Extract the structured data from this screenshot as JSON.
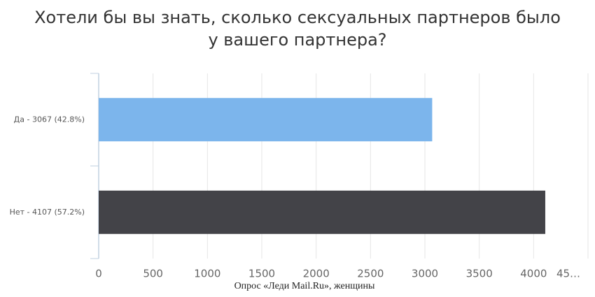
{
  "chart_data": {
    "type": "bar",
    "orientation": "horizontal",
    "title": [
      "Хотели бы вы знать, сколько сексуальных партнеров было",
      "у вашего партнера?"
    ],
    "categories": [
      "Да - 3067 (42.8%)",
      "Нет - 4107 (57.2%)"
    ],
    "values": [
      3067,
      4107
    ],
    "colors": [
      "#7cb5ec",
      "#434348"
    ],
    "xlim": [
      0,
      4500
    ],
    "xticks": [
      0,
      500,
      1000,
      1500,
      2000,
      2500,
      3000,
      3500,
      4000,
      {
        "value": 4500,
        "label": "45…"
      }
    ],
    "grid": true,
    "source": "Опрос «Леди Mail.Ru», женщины"
  }
}
